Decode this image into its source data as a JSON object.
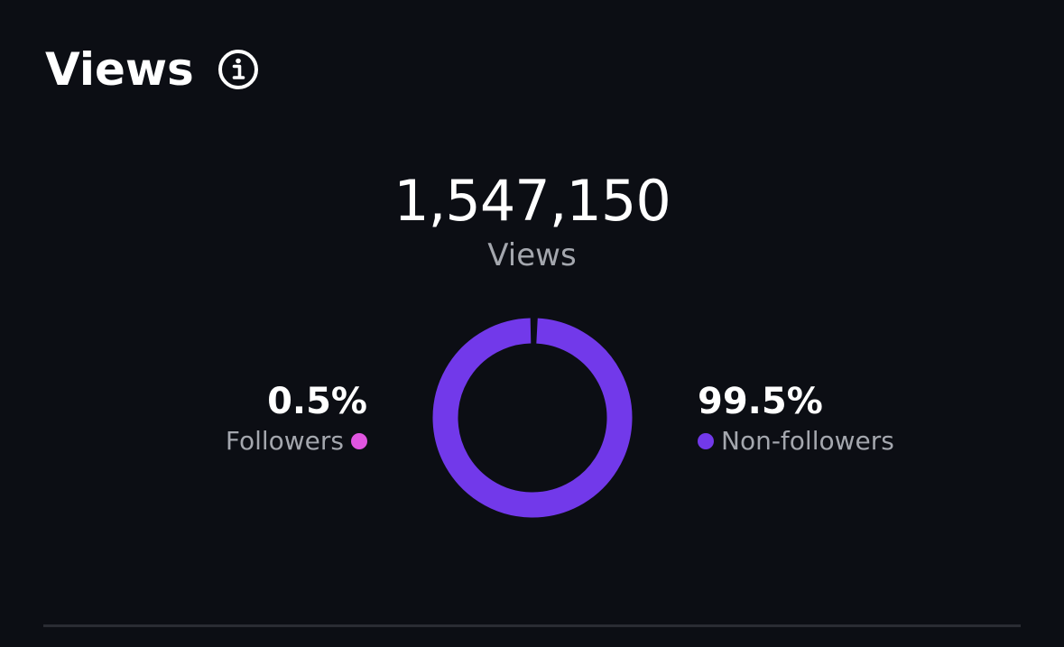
{
  "header": {
    "title": "Views",
    "info_icon": "info-icon"
  },
  "summary": {
    "total": "1,547,150",
    "label": "Views"
  },
  "breakdown": {
    "followers": {
      "percent_text": "0.5%",
      "label": "Followers",
      "color": "#e055e0"
    },
    "non_followers": {
      "percent_text": "99.5%",
      "label": "Non-followers",
      "color": "#7239ea"
    }
  },
  "colors": {
    "background": "#0c0e14",
    "text_primary": "#ffffff",
    "text_secondary": "#a4a7ae",
    "divider": "#2a2c33"
  },
  "chart_data": {
    "type": "pie",
    "categories": [
      "Followers",
      "Non-followers"
    ],
    "values": [
      0.5,
      99.5
    ],
    "colors": [
      "#e055e0",
      "#7239ea"
    ],
    "style": "donut"
  }
}
